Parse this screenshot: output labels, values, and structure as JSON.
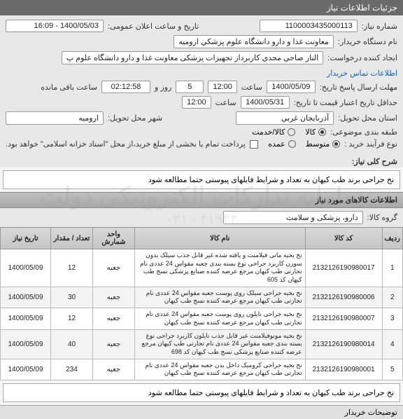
{
  "header": {
    "title": "جزئیات اطلاعات نیاز"
  },
  "form": {
    "need_no_label": "شماره نیاز:",
    "need_no": "1100003435000113",
    "announce_label": "تاریخ و ساعت اعلان عمومی:",
    "announce_value": "1400/05/03 - 16:09",
    "buyer_org_label": "نام دستگاه خریدار:",
    "buyer_org": "معاونت غذا و دارو دانشگاه علوم پزشكي اروميه",
    "requester_label": "ایجاد کننده درخواست:",
    "requester": "النار صاحي مجدي كاربرداز تجهيزات پزشکی معاونت غذا و دارو دانشگاه علوم پ",
    "contact_link": "اطلاعات تماس خریدار",
    "deadline_label": "مهلت ارسال پاسخ تاریخ:",
    "deadline_date": "1400/05/09",
    "time_label": "ساعت",
    "deadline_time": "12:00",
    "day_label": "روز و",
    "remaining_days": "5",
    "remaining_time_label": "ساعت باقی مانده",
    "remaining_time": "02:12:58",
    "validity_label": "حداقل تاریخ اعتبار قیمت تا تاریخ:",
    "validity_date": "1400/05/31",
    "validity_time": "12:00",
    "province_label": "استان محل تحویل:",
    "province": "آذربايجان غربي",
    "city_label": "شهر محل تحویل:",
    "city": "اروميه",
    "classify_label": "طبقه بندی موضوعی:",
    "classify_options": {
      "goods": "کالا",
      "service": "کالا/خدمت"
    },
    "classify_selected": "goods",
    "buy_type_label": "نوع فرآیند خرید :",
    "buy_type_options": {
      "medium": "متوسط",
      "large": "عمده"
    },
    "buy_type_selected": "medium",
    "payment_note": "پرداخت تمام یا بخشی از مبلغ خرید،از محل \"اسناد خزانه اسلامی\" خواهد بود."
  },
  "summary": {
    "title_label": "شرح کلی نیاز:",
    "text": "نخ جراحی برند طب کیهان به تعداد و شرایط فایلهای پیوستی حتما مطالعه شود"
  },
  "items_section": {
    "title": "اطلاعات کالاهای مورد نیاز"
  },
  "group": {
    "label": "گروه کالا:",
    "value": "دارو، پزشکی و سلامت"
  },
  "table": {
    "columns": {
      "row": "ردیف",
      "code": "کد کالا",
      "name": "نام کالا",
      "unit": "واحد شمارش",
      "qty": "تعداد / مقدار",
      "date": "تاریخ نیاز"
    },
    "rows": [
      {
        "n": "1",
        "code": "2132126190980017",
        "name": "نخ بخيه مانی فيلامنت و يافته شده غير قابل جذب سيلک بدون سوزن کاربرد جراحی نوع بسته بندی جعبه مقواس 24 عددی نام تجارتی طب کیهان مرجع عرضه کننده صنايع پزشكی نسج طب کیهان کد 605",
        "unit": "جعبه",
        "qty": "12",
        "date": "1400/05/09"
      },
      {
        "n": "2",
        "code": "2132126190980006",
        "name": "نخ بخيه جراحی سيلک روی پوست جعبه مقواس 24 عددی نام تجارتی طب کیهان مرجع عرضه کننده نسج طب کیهان",
        "unit": "جعبه",
        "qty": "30",
        "date": "1400/05/09"
      },
      {
        "n": "3",
        "code": "2132126190980007",
        "name": "نخ بخيه جراحی نايلون روی پوست جعبه مقواس 24 عددی نام تجارتی طب کیهان مرجع عرضه کننده نسج طب کیهان",
        "unit": "جعبه",
        "qty": "12",
        "date": "1400/05/09"
      },
      {
        "n": "4",
        "code": "2132126190980014",
        "name": "نخ بخيه مونوفيلامنت غير قابل جذب نايلون کاربرد جراحی نوع بسته بندی جعبه مقواس 24 عددی نام تجارتی طب کیهان مرجع عرضه کننده صنايع پزشكی نسج طب کیهان کد 698",
        "unit": "جعبه",
        "qty": "40",
        "date": "1400/05/09"
      },
      {
        "n": "5",
        "code": "2132126190980001",
        "name": "نخ بخيه جراحی کروميک داخل بدن جعبه مقواس 24 عددی نام تجارتی طب کیهان مرجع عرضه کننده نسج طب کیهان",
        "unit": "جعبه",
        "qty": "234",
        "date": "1400/05/09"
      }
    ]
  },
  "bottom": {
    "text": "نخ جراحی برند طب کیهان به تعداد و شرایط فایلهای پیوستی حتما مطالعه شود"
  },
  "footer": {
    "title": "توضیحات خریدار"
  },
  "watermark": {
    "main": "سامانه تدارکات الکترونیکی دولت",
    "sub": "۰۲۱ - ۴۱۹۳۴"
  }
}
